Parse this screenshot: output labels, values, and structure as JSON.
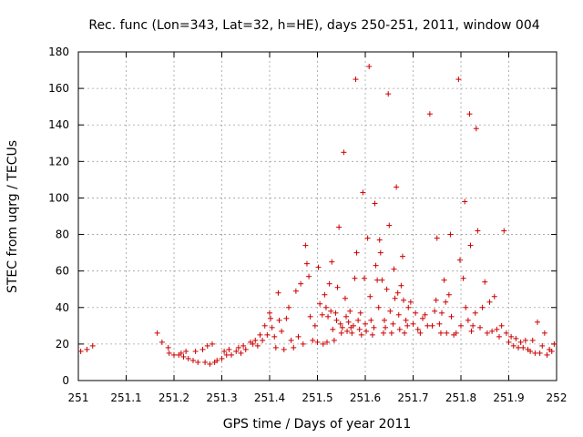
{
  "chart_data": {
    "type": "scatter",
    "title": "Rec. func (Lon=343, Lat=32, h=HE), days 250-251, 2011, window 004",
    "xlabel": "GPS time / Days of year 2011",
    "ylabel": "STEC from uqrg / TECUs",
    "xlim": [
      251,
      252
    ],
    "ylim": [
      0,
      180
    ],
    "xticks": [
      "251",
      "251.1",
      "251.2",
      "251.3",
      "251.4",
      "251.5",
      "251.6",
      "251.7",
      "251.8",
      "251.9",
      "252"
    ],
    "yticks": [
      "0",
      "20",
      "40",
      "60",
      "80",
      "100",
      "120",
      "140",
      "160",
      "180"
    ],
    "grid": true,
    "marker": "+",
    "color": "#cc0000",
    "series": [
      {
        "name": "STEC",
        "points": [
          [
            251.005,
            16
          ],
          [
            251.018,
            17
          ],
          [
            251.03,
            19
          ],
          [
            251.165,
            26
          ],
          [
            251.175,
            21
          ],
          [
            251.188,
            18
          ],
          [
            251.19,
            15
          ],
          [
            251.2,
            14
          ],
          [
            251.21,
            14
          ],
          [
            251.215,
            15
          ],
          [
            251.22,
            13
          ],
          [
            251.225,
            16
          ],
          [
            251.23,
            12
          ],
          [
            251.24,
            11
          ],
          [
            251.245,
            16
          ],
          [
            251.25,
            10
          ],
          [
            251.26,
            17
          ],
          [
            251.265,
            10
          ],
          [
            251.27,
            19
          ],
          [
            251.275,
            9
          ],
          [
            251.28,
            20
          ],
          [
            251.285,
            10
          ],
          [
            251.29,
            11
          ],
          [
            251.3,
            12
          ],
          [
            251.305,
            16
          ],
          [
            251.31,
            14
          ],
          [
            251.315,
            17
          ],
          [
            251.32,
            14
          ],
          [
            251.33,
            16
          ],
          [
            251.335,
            18
          ],
          [
            251.34,
            15
          ],
          [
            251.345,
            19
          ],
          [
            251.35,
            17
          ],
          [
            251.36,
            21
          ],
          [
            251.365,
            20
          ],
          [
            251.37,
            22
          ],
          [
            251.375,
            19
          ],
          [
            251.38,
            25
          ],
          [
            251.385,
            22
          ],
          [
            251.39,
            30
          ],
          [
            251.395,
            25
          ],
          [
            251.4,
            37
          ],
          [
            251.402,
            34
          ],
          [
            251.405,
            29
          ],
          [
            251.41,
            24
          ],
          [
            251.413,
            18
          ],
          [
            251.418,
            48
          ],
          [
            251.42,
            33
          ],
          [
            251.425,
            27
          ],
          [
            251.43,
            17
          ],
          [
            251.435,
            34
          ],
          [
            251.44,
            40
          ],
          [
            251.445,
            22
          ],
          [
            251.45,
            18
          ],
          [
            251.455,
            49
          ],
          [
            251.46,
            24
          ],
          [
            251.465,
            53
          ],
          [
            251.47,
            20
          ],
          [
            251.475,
            74
          ],
          [
            251.478,
            64
          ],
          [
            251.482,
            57
          ],
          [
            251.485,
            35
          ],
          [
            251.49,
            22
          ],
          [
            251.495,
            30
          ],
          [
            251.5,
            21
          ],
          [
            251.502,
            62
          ],
          [
            251.505,
            42
          ],
          [
            251.51,
            36
          ],
          [
            251.512,
            20
          ],
          [
            251.515,
            47
          ],
          [
            251.518,
            40
          ],
          [
            251.52,
            21
          ],
          [
            251.522,
            35
          ],
          [
            251.525,
            53
          ],
          [
            251.528,
            38
          ],
          [
            251.53,
            65
          ],
          [
            251.532,
            28
          ],
          [
            251.535,
            22
          ],
          [
            251.538,
            37
          ],
          [
            251.54,
            33
          ],
          [
            251.542,
            51
          ],
          [
            251.545,
            84
          ],
          [
            251.548,
            31
          ],
          [
            251.55,
            26
          ],
          [
            251.552,
            29
          ],
          [
            251.555,
            125
          ],
          [
            251.558,
            45
          ],
          [
            251.56,
            35
          ],
          [
            251.562,
            27
          ],
          [
            251.565,
            32
          ],
          [
            251.568,
            38
          ],
          [
            251.57,
            29
          ],
          [
            251.572,
            26
          ],
          [
            251.575,
            30
          ],
          [
            251.578,
            56
          ],
          [
            251.58,
            165
          ],
          [
            251.582,
            70
          ],
          [
            251.585,
            33
          ],
          [
            251.588,
            28
          ],
          [
            251.59,
            37
          ],
          [
            251.592,
            25
          ],
          [
            251.595,
            103
          ],
          [
            251.598,
            56
          ],
          [
            251.6,
            31
          ],
          [
            251.602,
            27
          ],
          [
            251.605,
            78
          ],
          [
            251.608,
            172
          ],
          [
            251.61,
            46
          ],
          [
            251.612,
            33
          ],
          [
            251.615,
            25
          ],
          [
            251.618,
            29
          ],
          [
            251.62,
            97
          ],
          [
            251.622,
            63
          ],
          [
            251.625,
            55
          ],
          [
            251.628,
            40
          ],
          [
            251.63,
            77
          ],
          [
            251.632,
            70
          ],
          [
            251.635,
            55
          ],
          [
            251.638,
            26
          ],
          [
            251.64,
            33
          ],
          [
            251.642,
            29
          ],
          [
            251.645,
            50
          ],
          [
            251.648,
            157
          ],
          [
            251.65,
            85
          ],
          [
            251.652,
            38
          ],
          [
            251.655,
            26
          ],
          [
            251.658,
            31
          ],
          [
            251.66,
            61
          ],
          [
            251.662,
            45
          ],
          [
            251.665,
            106
          ],
          [
            251.668,
            48
          ],
          [
            251.67,
            36
          ],
          [
            251.672,
            28
          ],
          [
            251.675,
            52
          ],
          [
            251.678,
            68
          ],
          [
            251.68,
            44
          ],
          [
            251.682,
            26
          ],
          [
            251.685,
            33
          ],
          [
            251.688,
            30
          ],
          [
            251.69,
            40
          ],
          [
            251.695,
            43
          ],
          [
            251.7,
            31
          ],
          [
            251.705,
            37
          ],
          [
            251.71,
            28
          ],
          [
            251.715,
            26
          ],
          [
            251.72,
            34
          ],
          [
            251.725,
            36
          ],
          [
            251.73,
            30
          ],
          [
            251.735,
            146
          ],
          [
            251.74,
            30
          ],
          [
            251.745,
            38
          ],
          [
            251.748,
            44
          ],
          [
            251.75,
            78
          ],
          [
            251.755,
            31
          ],
          [
            251.758,
            26
          ],
          [
            251.76,
            37
          ],
          [
            251.765,
            55
          ],
          [
            251.768,
            43
          ],
          [
            251.77,
            26
          ],
          [
            251.775,
            47
          ],
          [
            251.778,
            80
          ],
          [
            251.78,
            35
          ],
          [
            251.785,
            25
          ],
          [
            251.79,
            26
          ],
          [
            251.795,
            165
          ],
          [
            251.798,
            66
          ],
          [
            251.8,
            30
          ],
          [
            251.805,
            56
          ],
          [
            251.808,
            98
          ],
          [
            251.81,
            40
          ],
          [
            251.815,
            33
          ],
          [
            251.818,
            146
          ],
          [
            251.82,
            74
          ],
          [
            251.822,
            27
          ],
          [
            251.825,
            30
          ],
          [
            251.83,
            37
          ],
          [
            251.832,
            138
          ],
          [
            251.835,
            82
          ],
          [
            251.84,
            29
          ],
          [
            251.845,
            40
          ],
          [
            251.85,
            54
          ],
          [
            251.855,
            26
          ],
          [
            251.86,
            43
          ],
          [
            251.865,
            27
          ],
          [
            251.87,
            46
          ],
          [
            251.875,
            28
          ],
          [
            251.88,
            24
          ],
          [
            251.885,
            30
          ],
          [
            251.89,
            82
          ],
          [
            251.895,
            26
          ],
          [
            251.9,
            21
          ],
          [
            251.905,
            24
          ],
          [
            251.91,
            19
          ],
          [
            251.915,
            23
          ],
          [
            251.92,
            18
          ],
          [
            251.925,
            21
          ],
          [
            251.93,
            18
          ],
          [
            251.935,
            22
          ],
          [
            251.94,
            17
          ],
          [
            251.945,
            16
          ],
          [
            251.95,
            22
          ],
          [
            251.955,
            15
          ],
          [
            251.96,
            32
          ],
          [
            251.965,
            15
          ],
          [
            251.97,
            19
          ],
          [
            251.975,
            26
          ],
          [
            251.98,
            14
          ],
          [
            251.985,
            17
          ],
          [
            251.99,
            16
          ],
          [
            251.995,
            20
          ]
        ]
      }
    ]
  }
}
